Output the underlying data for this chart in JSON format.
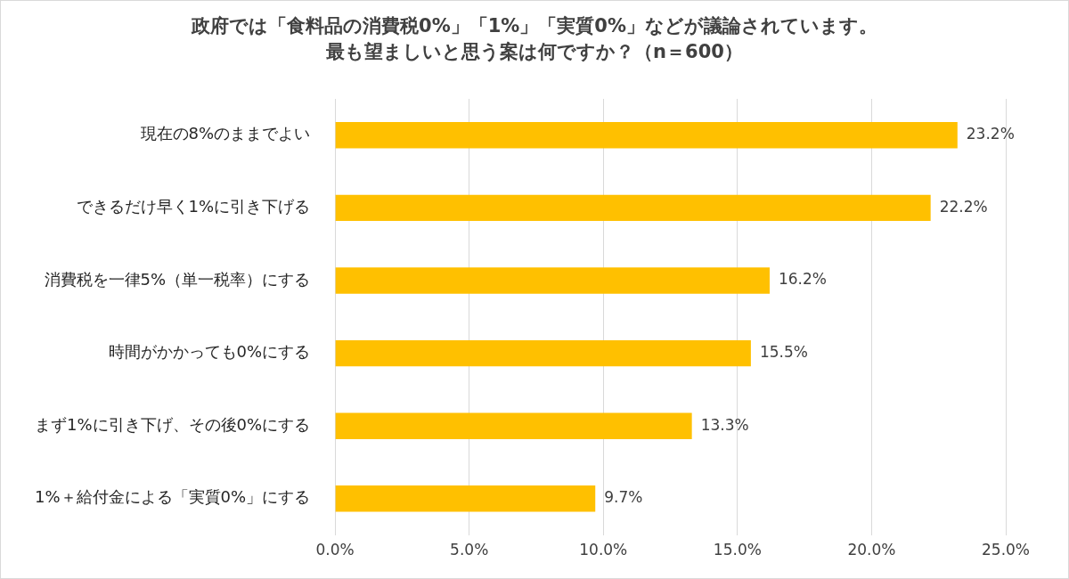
{
  "chart_data": {
    "type": "bar",
    "orientation": "horizontal",
    "title": "政府では「食料品の消費税0%」「1%」「実質0%」などが議論されています。最も望ましいと思う案は何ですか？（n＝600）",
    "categories": [
      "現在の8%のままでよい",
      "できるだけ早く1%に引き下げる",
      "消費税を一律5%（単一税率）にする",
      "時間がかかっても0%にする",
      "まず1%に引き下げ、その後0%にする",
      "1%＋給付金による「実質0%」にする"
    ],
    "values": [
      23.2,
      22.2,
      16.2,
      15.5,
      13.3,
      9.7
    ],
    "value_labels": [
      "23.2%",
      "22.2%",
      "16.2%",
      "15.5%",
      "13.3%",
      "9.7%"
    ],
    "color": "#ffc000",
    "xlim": [
      0,
      25
    ],
    "xticks": [
      {
        "value": 0,
        "label": "0.0%"
      },
      {
        "value": 5,
        "label": "5.0%"
      },
      {
        "value": 10,
        "label": "10.0%"
      },
      {
        "value": 15,
        "label": "15.0%"
      },
      {
        "value": 20,
        "label": "20.0%"
      },
      {
        "value": 25,
        "label": "25.0%"
      }
    ],
    "grid": "x",
    "legend": false
  }
}
